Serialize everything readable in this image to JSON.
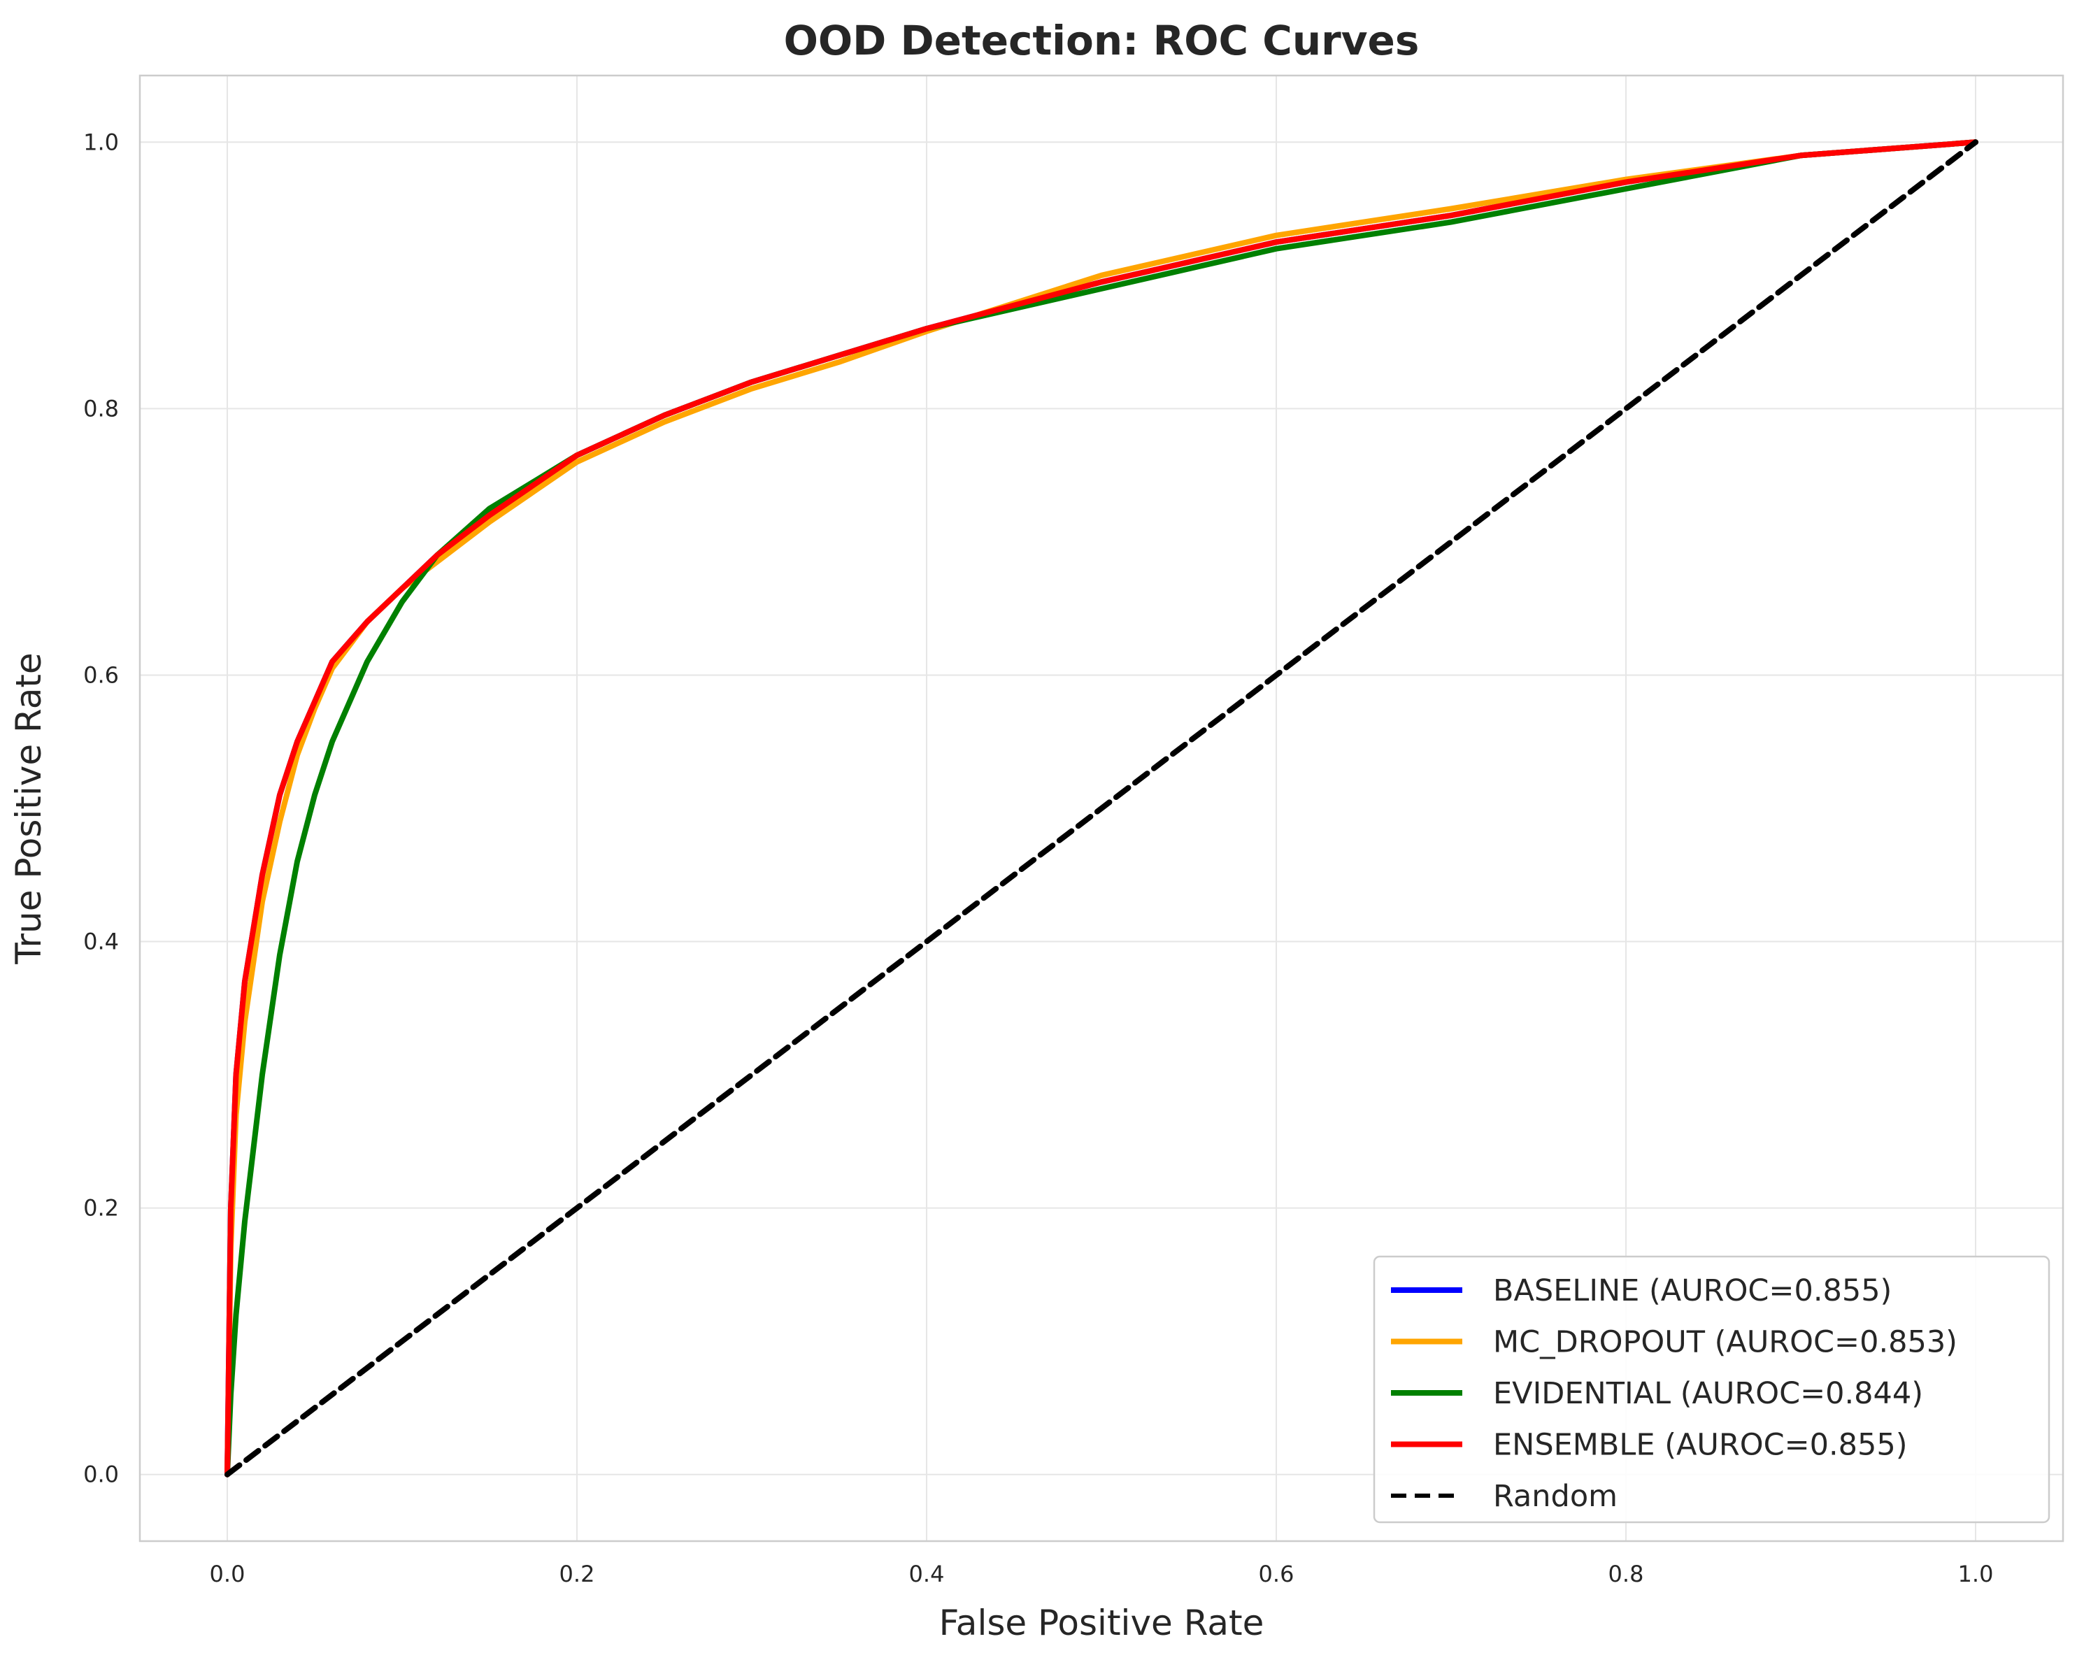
{
  "chart_data": {
    "type": "line",
    "title": "OOD Detection: ROC Curves",
    "xlabel": "False Positive Rate",
    "ylabel": "True Positive Rate",
    "xlim": [
      -0.05,
      1.05
    ],
    "ylim": [
      -0.05,
      1.05
    ],
    "xticks": [
      0.0,
      0.2,
      0.4,
      0.6,
      0.8,
      1.0
    ],
    "yticks": [
      0.0,
      0.2,
      0.4,
      0.6,
      0.8,
      1.0
    ],
    "tick_labels_x": [
      "0.0",
      "0.2",
      "0.4",
      "0.6",
      "0.8",
      "1.0"
    ],
    "tick_labels_y": [
      "0.0",
      "0.2",
      "0.4",
      "0.6",
      "0.8",
      "1.0"
    ],
    "grid": true,
    "legend_position": "lower-right",
    "series": [
      {
        "name": "BASELINE (AUROC=0.855)",
        "color": "#0000ff",
        "style": "solid",
        "x": [
          0,
          0.002,
          0.005,
          0.01,
          0.02,
          0.03,
          0.04,
          0.05,
          0.06,
          0.08,
          0.1,
          0.12,
          0.15,
          0.2,
          0.25,
          0.3,
          0.35,
          0.4,
          0.5,
          0.6,
          0.7,
          0.8,
          0.9,
          1.0
        ],
        "y": [
          0,
          0.2,
          0.3,
          0.37,
          0.45,
          0.51,
          0.55,
          0.58,
          0.61,
          0.64,
          0.665,
          0.69,
          0.72,
          0.765,
          0.795,
          0.82,
          0.84,
          0.86,
          0.895,
          0.925,
          0.945,
          0.97,
          0.99,
          1.0
        ]
      },
      {
        "name": "MC_DROPOUT (AUROC=0.853)",
        "color": "#ffa500",
        "style": "solid",
        "x": [
          0,
          0.002,
          0.005,
          0.01,
          0.02,
          0.03,
          0.04,
          0.05,
          0.06,
          0.08,
          0.1,
          0.12,
          0.15,
          0.2,
          0.25,
          0.3,
          0.35,
          0.4,
          0.5,
          0.6,
          0.7,
          0.8,
          0.9,
          1.0
        ],
        "y": [
          0,
          0.17,
          0.27,
          0.34,
          0.43,
          0.49,
          0.54,
          0.575,
          0.605,
          0.64,
          0.665,
          0.685,
          0.715,
          0.76,
          0.79,
          0.815,
          0.835,
          0.858,
          0.9,
          0.93,
          0.95,
          0.972,
          0.99,
          1.0
        ]
      },
      {
        "name": "EVIDENTIAL (AUROC=0.844)",
        "color": "#008000",
        "style": "solid",
        "x": [
          0,
          0.002,
          0.005,
          0.01,
          0.02,
          0.03,
          0.04,
          0.05,
          0.06,
          0.08,
          0.1,
          0.12,
          0.15,
          0.2,
          0.25,
          0.3,
          0.35,
          0.4,
          0.5,
          0.6,
          0.7,
          0.8,
          0.9,
          1.0
        ],
        "y": [
          0,
          0.06,
          0.12,
          0.19,
          0.3,
          0.39,
          0.46,
          0.51,
          0.55,
          0.61,
          0.655,
          0.69,
          0.725,
          0.765,
          0.795,
          0.82,
          0.84,
          0.86,
          0.89,
          0.92,
          0.94,
          0.965,
          0.99,
          1.0
        ]
      },
      {
        "name": "ENSEMBLE (AUROC=0.855)",
        "color": "#ff0000",
        "style": "solid",
        "x": [
          0,
          0.002,
          0.005,
          0.01,
          0.02,
          0.03,
          0.04,
          0.05,
          0.06,
          0.08,
          0.1,
          0.12,
          0.15,
          0.2,
          0.25,
          0.3,
          0.35,
          0.4,
          0.5,
          0.6,
          0.7,
          0.8,
          0.9,
          1.0
        ],
        "y": [
          0,
          0.2,
          0.3,
          0.37,
          0.45,
          0.51,
          0.55,
          0.58,
          0.61,
          0.64,
          0.665,
          0.69,
          0.72,
          0.765,
          0.795,
          0.82,
          0.84,
          0.86,
          0.895,
          0.925,
          0.945,
          0.97,
          0.99,
          1.0
        ]
      },
      {
        "name": "Random",
        "color": "#000000",
        "style": "dashed",
        "x": [
          0,
          1
        ],
        "y": [
          0,
          1
        ]
      }
    ]
  }
}
